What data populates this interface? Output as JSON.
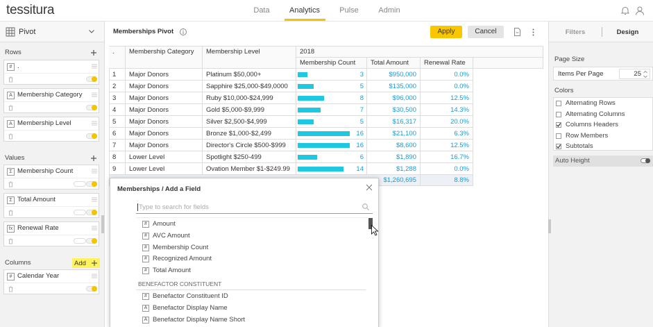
{
  "header": {
    "logo": "tessitura",
    "nav": [
      "Data",
      "Analytics",
      "Pulse",
      "Admin"
    ]
  },
  "sidebar": {
    "view": "Pivot",
    "rows": {
      "label": "Rows",
      "fields": [
        {
          "type": "#",
          "name": "."
        },
        {
          "type": "A",
          "name": "Membership Category"
        },
        {
          "type": "A",
          "name": "Membership Level"
        }
      ]
    },
    "values": {
      "label": "Values",
      "fields": [
        {
          "type": "Σ",
          "name": "Membership Count"
        },
        {
          "type": "Σ",
          "name": "Total Amount"
        },
        {
          "type": "fx",
          "name": "Renewal Rate"
        }
      ]
    },
    "columns": {
      "label": "Columns",
      "add": "Add",
      "fields": [
        {
          "type": "#",
          "name": "Calendar Year"
        }
      ]
    }
  },
  "toolbar": {
    "title": "Memberships Pivot",
    "apply": "Apply",
    "cancel": "Cancel"
  },
  "table": {
    "corner": ".",
    "row_headers": [
      "Membership Category",
      "Membership Level"
    ],
    "column_group": "2018",
    "measures": [
      "Membership Count",
      "Total Amount",
      "Renewal Rate"
    ],
    "rows": [
      {
        "n": 1,
        "category": "Major Donors",
        "level": "Platinum $50,000+",
        "count": 3,
        "amount": "$950,000",
        "rate": "0.0%"
      },
      {
        "n": 2,
        "category": "Major Donors",
        "level": "Sapphire $25,000-$49,0000",
        "count": 5,
        "amount": "$135,000",
        "rate": "0.0%"
      },
      {
        "n": 3,
        "category": "Major Donors",
        "level": "Ruby $10,000-$24,999",
        "count": 8,
        "amount": "$96,000",
        "rate": "12.5%"
      },
      {
        "n": 4,
        "category": "Major Donors",
        "level": "Gold $5,000-$9,999",
        "count": 7,
        "amount": "$30,500",
        "rate": "14.3%"
      },
      {
        "n": 5,
        "category": "Major Donors",
        "level": "Silver $2,500-$4,999",
        "count": 5,
        "amount": "$16,317",
        "rate": "20.0%"
      },
      {
        "n": 6,
        "category": "Major Donors",
        "level": "Bronze $1,000-$2,499",
        "count": 16,
        "amount": "$21,100",
        "rate": "6.3%"
      },
      {
        "n": 7,
        "category": "Major Donors",
        "level": "Director's Circle $500-$999",
        "count": 16,
        "amount": "$8,600",
        "rate": "12.5%"
      },
      {
        "n": 8,
        "category": "Lower Level",
        "level": "Spotlight $250-499",
        "count": 6,
        "amount": "$1,890",
        "rate": "16.7%"
      },
      {
        "n": 9,
        "category": "Lower Level",
        "level": "Ovation Member $1-$249.99",
        "count": 14,
        "amount": "$1,288",
        "rate": "0.0%"
      }
    ],
    "total": {
      "amount": "$1,260,695",
      "rate": "8.8%"
    }
  },
  "design": {
    "tabs": [
      "Filters",
      "Design"
    ],
    "page_size": "Page Size",
    "items_per_page": "Items Per Page",
    "items_per_page_value": 25,
    "colors": "Colors",
    "options": [
      {
        "label": "Alternating Rows",
        "checked": false
      },
      {
        "label": "Alternating Columns",
        "checked": false
      },
      {
        "label": "Columns Headers",
        "checked": true
      },
      {
        "label": "Row Members",
        "checked": false
      },
      {
        "label": "Subtotals",
        "checked": true
      }
    ],
    "auto_height": "Auto Height"
  },
  "dialog": {
    "title": "Memberships",
    "subtitle": "/ Add a Field",
    "search_placeholder": "Type to search for fields",
    "fields": [
      {
        "type": "#",
        "name": "Amount"
      },
      {
        "type": "#",
        "name": "AVC Amount"
      },
      {
        "type": "#",
        "name": "Membership Count"
      },
      {
        "type": "#",
        "name": "Recognized Amount"
      },
      {
        "type": "#",
        "name": "Total Amount"
      }
    ],
    "group": "BENEFACTOR CONSTITUENT",
    "group_fields": [
      {
        "type": "#",
        "name": "Benefactor Constituent ID"
      },
      {
        "type": "A",
        "name": "Benefactor Display Name"
      },
      {
        "type": "A",
        "name": "Benefactor Display Name Short"
      }
    ]
  }
}
